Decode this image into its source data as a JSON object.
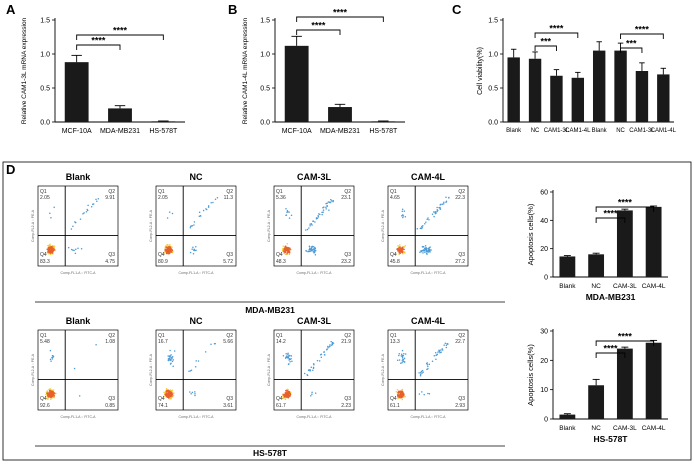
{
  "colors": {
    "bar": "#1a1a1a",
    "axis": "#000000",
    "dots_low": "#4a9ad6",
    "dots_mid": "#2bbf8a",
    "dots_high": "#f0d030",
    "dots_hot": "#e8602a"
  },
  "panel_letters": {
    "a": "A",
    "b": "B",
    "c": "C",
    "d": "D"
  },
  "chart_data": [
    {
      "id": "A",
      "type": "bar",
      "categories": [
        "MCF-10A",
        "MDA-MB231",
        "HS-578T"
      ],
      "values": [
        0.88,
        0.2,
        0.01
      ],
      "errors": [
        0.1,
        0.04,
        0.005
      ],
      "ylabel": "Relative CAM1-3L mRNA expression",
      "ylim": [
        0,
        1.5
      ],
      "yticks": [
        "0.0",
        "0.5",
        "1.0",
        "1.5"
      ],
      "significance": [
        {
          "from": 0,
          "to": 1,
          "label": "****"
        },
        {
          "from": 0,
          "to": 2,
          "label": "****"
        }
      ]
    },
    {
      "id": "B",
      "type": "bar",
      "categories": [
        "MCF-10A",
        "MDA-MB231",
        "HS-578T"
      ],
      "values": [
        1.12,
        0.22,
        0.01
      ],
      "errors": [
        0.14,
        0.04,
        0.005
      ],
      "ylabel": "Relative CAM1-4L mRNA expression",
      "ylim": [
        0,
        1.5
      ],
      "yticks": [
        "0.0",
        "0.5",
        "1.0",
        "1.5"
      ],
      "significance": [
        {
          "from": 0,
          "to": 1,
          "label": "****"
        },
        {
          "from": 0,
          "to": 2,
          "label": "****"
        }
      ]
    },
    {
      "id": "C",
      "type": "bar",
      "categories": [
        "Blank",
        "NC",
        "CAM1-3L",
        "CAM1-4L",
        "Blank",
        "NC",
        "CAM1-3L",
        "CAM1-4L"
      ],
      "values": [
        0.95,
        0.93,
        0.68,
        0.65,
        1.05,
        1.05,
        0.75,
        0.7
      ],
      "errors": [
        0.12,
        0.1,
        0.09,
        0.08,
        0.13,
        0.11,
        0.12,
        0.09
      ],
      "ylabel": "Cell viability(%)",
      "ylim": [
        0,
        1.5
      ],
      "yticks": [
        "0.0",
        "0.5",
        "1.0",
        "1.5"
      ],
      "significance": [
        {
          "from": 1,
          "to": 2,
          "label": "***"
        },
        {
          "from": 1,
          "to": 3,
          "label": "****"
        },
        {
          "from": 5,
          "to": 6,
          "label": "***"
        },
        {
          "from": 5,
          "to": 7,
          "label": "****"
        }
      ]
    },
    {
      "id": "D-MDA",
      "type": "bar",
      "categories": [
        "Blank",
        "NC",
        "CAM-3L",
        "CAM-4L"
      ],
      "values": [
        14.5,
        16,
        47,
        49.5
      ],
      "errors": [
        0.6,
        0.8,
        0.9,
        0.6
      ],
      "ylabel": "Apoptosis cells(%)",
      "xlabel": "MDA-MB231",
      "ylim": [
        0,
        60
      ],
      "yticks": [
        "0",
        "20",
        "40",
        "60"
      ],
      "significance": [
        {
          "from": 1,
          "to": 2,
          "label": "****"
        },
        {
          "from": 1,
          "to": 3,
          "label": "****"
        }
      ]
    },
    {
      "id": "D-HS",
      "type": "bar",
      "categories": [
        "Blank",
        "NC",
        "CAM-3L",
        "CAM-4L"
      ],
      "values": [
        1.5,
        11.5,
        24,
        26
      ],
      "errors": [
        0.3,
        2,
        0.5,
        0.8
      ],
      "ylabel": "Apoptosis cells(%)",
      "xlabel": "HS-578T",
      "ylim": [
        0,
        30
      ],
      "yticks": [
        "0",
        "10",
        "20",
        "30"
      ],
      "significance": [
        {
          "from": 1,
          "to": 2,
          "label": "****"
        },
        {
          "from": 1,
          "to": 3,
          "label": "****"
        }
      ]
    }
  ],
  "flow": {
    "mda": {
      "row_label": "MDA-MB231",
      "plots": [
        {
          "title": "Blank",
          "q1": "2.05",
          "q2": "9.91",
          "q3": "4.75",
          "q4": "83.3"
        },
        {
          "title": "NC",
          "q1": "2.05",
          "q2": "11.3",
          "q3": "5.72",
          "q4": "80.9"
        },
        {
          "title": "CAM-3L",
          "q1": "5.36",
          "q2": "23.1",
          "q3": "23.2",
          "q4": "48.3"
        },
        {
          "title": "CAM-4L",
          "q1": "4.65",
          "q2": "22.3",
          "q3": "27.2",
          "q4": "45.8"
        }
      ]
    },
    "hs": {
      "row_label": "HS-578T",
      "plots": [
        {
          "title": "Blank",
          "q1": "5.48",
          "q2": "1.08",
          "q3": "0.85",
          "q4": "92.6"
        },
        {
          "title": "NC",
          "q1": "16.7",
          "q2": "5.66",
          "q3": "3.61",
          "q4": "74.1"
        },
        {
          "title": "CAM-3L",
          "q1": "14.2",
          "q2": "21.9",
          "q3": "2.23",
          "q4": "61.7"
        },
        {
          "title": "CAM-4L",
          "q1": "13.3",
          "q2": "22.7",
          "q3": "2.93",
          "q4": "61.1"
        }
      ]
    },
    "quadrant_names": {
      "q1": "Q1",
      "q2": "Q2",
      "q3": "Q3",
      "q4": "Q4"
    },
    "axis_labels": {
      "x": "Comp-FL1-A :: FITC-A",
      "y": "Comp-FL2-A :: PE-A"
    }
  }
}
